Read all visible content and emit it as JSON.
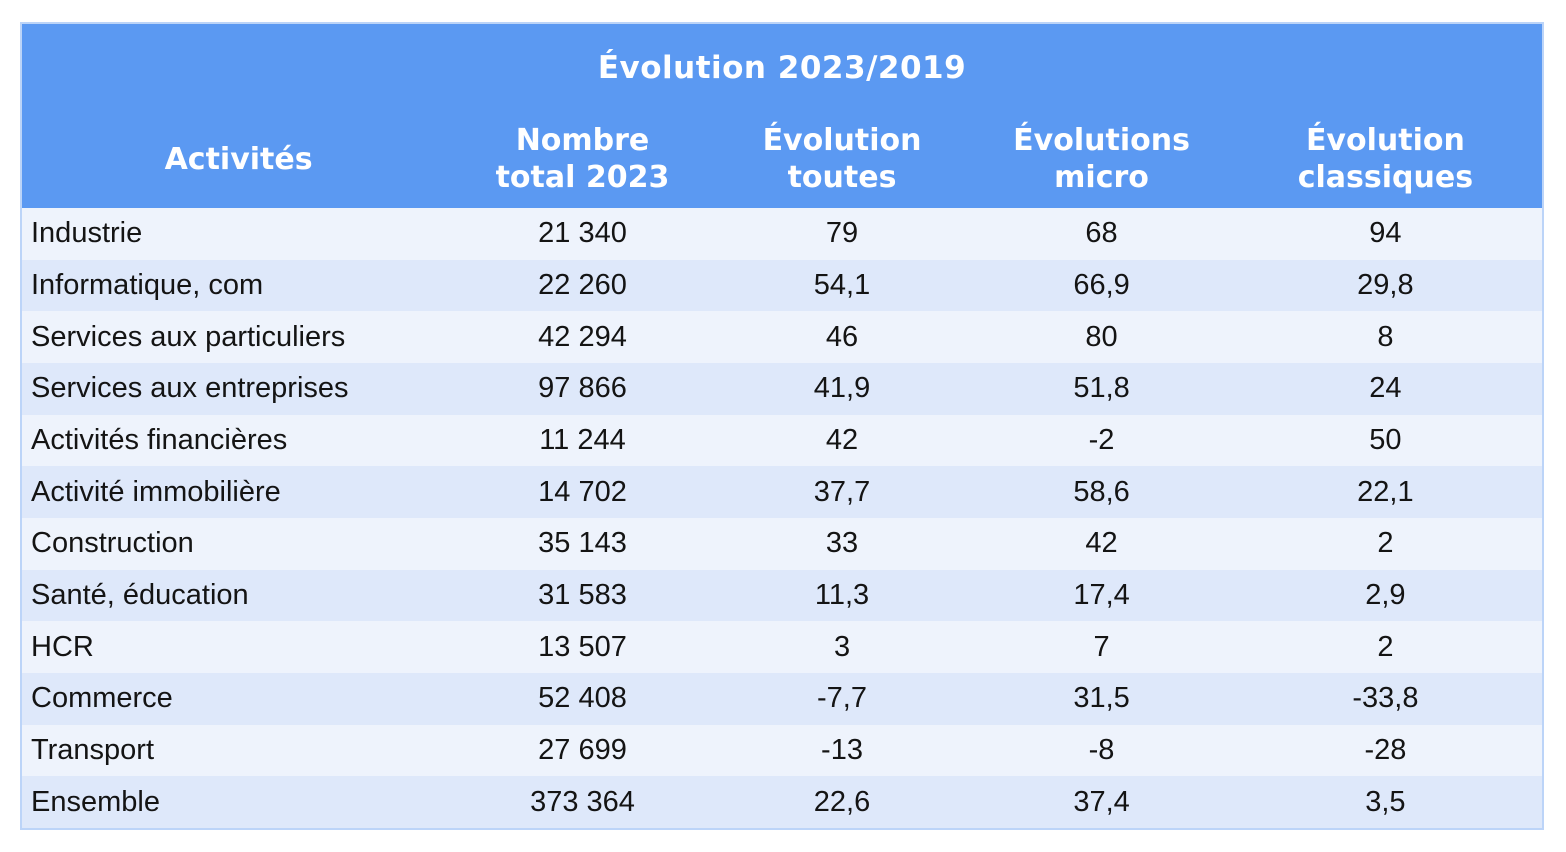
{
  "table": {
    "title": "Évolution 2023/2019",
    "columns": [
      "Activités",
      "Nombre\ntotal 2023",
      "Évolution\ntoutes",
      "Évolutions\nmicro",
      "Évolution\nclassiques"
    ],
    "rows": [
      {
        "activity": "Industrie",
        "total": "21 340",
        "toutes": "79",
        "micro": "68",
        "classiques": "94"
      },
      {
        "activity": "Informatique, com",
        "total": "22 260",
        "toutes": "54,1",
        "micro": "66,9",
        "classiques": "29,8"
      },
      {
        "activity": "Services aux particuliers",
        "total": "42 294",
        "toutes": "46",
        "micro": "80",
        "classiques": "8"
      },
      {
        "activity": "Services aux entreprises",
        "total": "97 866",
        "toutes": "41,9",
        "micro": "51,8",
        "classiques": "24"
      },
      {
        "activity": "Activités financières",
        "total": "11 244",
        "toutes": "42",
        "micro": "-2",
        "classiques": "50"
      },
      {
        "activity": "Activité immobilière",
        "total": "14 702",
        "toutes": "37,7",
        "micro": "58,6",
        "classiques": "22,1"
      },
      {
        "activity": "Construction",
        "total": "35 143",
        "toutes": "33",
        "micro": "42",
        "classiques": "2"
      },
      {
        "activity": "Santé, éducation",
        "total": "31 583",
        "toutes": "11,3",
        "micro": "17,4",
        "classiques": "2,9"
      },
      {
        "activity": "HCR",
        "total": "13 507",
        "toutes": "3",
        "micro": "7",
        "classiques": "2"
      },
      {
        "activity": "Commerce",
        "total": "52 408",
        "toutes": "-7,7",
        "micro": "31,5",
        "classiques": "-33,8"
      },
      {
        "activity": "Transport",
        "total": "27 699",
        "toutes": "-13",
        "micro": "-8",
        "classiques": "-28"
      },
      {
        "activity": "Ensemble",
        "total": "373 364",
        "toutes": "22,6",
        "micro": "37,4",
        "classiques": "3,5"
      }
    ]
  },
  "colors": {
    "header_bg": "#5B99F2",
    "header_text": "#FFFFFF",
    "row_light": "#EEF3FC",
    "row_dark": "#DEE8FA",
    "body_text": "#141414",
    "table_border": "#BCD4F8"
  },
  "chart_data": {
    "type": "table",
    "title": "Évolution 2023/2019",
    "columns": [
      "Activités",
      "Nombre total 2023",
      "Évolution toutes",
      "Évolutions micro",
      "Évolution classiques"
    ],
    "rows": [
      [
        "Industrie",
        21340,
        79,
        68,
        94
      ],
      [
        "Informatique, com",
        22260,
        54.1,
        66.9,
        29.8
      ],
      [
        "Services aux particuliers",
        42294,
        46,
        80,
        8
      ],
      [
        "Services aux entreprises",
        97866,
        41.9,
        51.8,
        24
      ],
      [
        "Activités financières",
        11244,
        42,
        -2,
        50
      ],
      [
        "Activité immobilière",
        14702,
        37.7,
        58.6,
        22.1
      ],
      [
        "Construction",
        35143,
        33,
        42,
        2
      ],
      [
        "Santé, éducation",
        31583,
        11.3,
        17.4,
        2.9
      ],
      [
        "HCR",
        13507,
        3,
        7,
        2
      ],
      [
        "Commerce",
        52408,
        -7.7,
        31.5,
        -33.8
      ],
      [
        "Transport",
        27699,
        -13,
        -8,
        -28
      ],
      [
        "Ensemble",
        373364,
        22.6,
        37.4,
        3.5
      ]
    ]
  }
}
